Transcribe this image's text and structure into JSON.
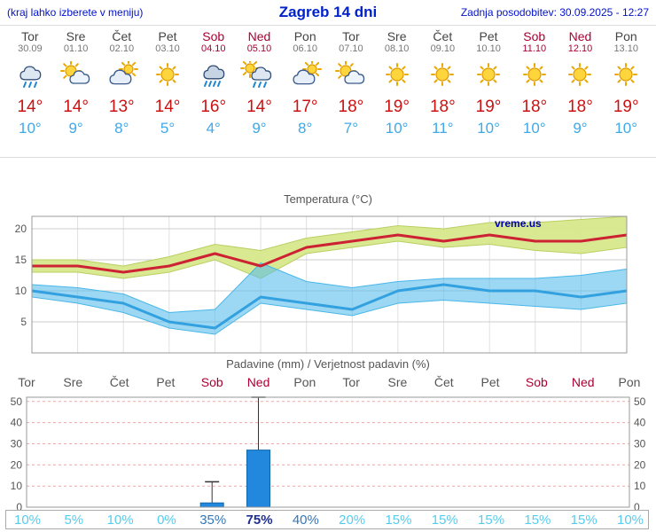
{
  "header": {
    "left_note": "(kraj lahko izberete v meniju)",
    "title": "Zagreb 14 dni",
    "updated": "Zadnja posodobitev: 30.09.2025 - 12:27"
  },
  "colors": {
    "header_blue": "#0022cc",
    "weekend_red": "#aa0033",
    "tmax_red": "#cc1111",
    "tmin_blue": "#3fa9e8",
    "tmax_line": "#cc2233",
    "tmin_line": "#33a1e0",
    "tmax_band": "rgba(214,232,140,0.95)",
    "tmin_band": "rgba(90,190,235,0.6)",
    "bar_blue": "#2288dd",
    "bar_edge": "#1166aa",
    "grid_gray": "#cccccc",
    "grid_pink": "#e9aaaa",
    "prob_low": "#55ccee",
    "prob_mid": "#3377bb",
    "prob_high": "#1d2f8f"
  },
  "days": [
    {
      "name": "Tor",
      "date": "30.09",
      "weekend": false,
      "icon": "cloud-rain",
      "tmax": "14°",
      "tmin": "10°"
    },
    {
      "name": "Sre",
      "date": "01.10",
      "weekend": false,
      "icon": "sun-cloud",
      "tmax": "14°",
      "tmin": "9°"
    },
    {
      "name": "Čet",
      "date": "02.10",
      "weekend": false,
      "icon": "cloud-sun",
      "tmax": "13°",
      "tmin": "8°"
    },
    {
      "name": "Pet",
      "date": "03.10",
      "weekend": false,
      "icon": "sun",
      "tmax": "14°",
      "tmin": "5°"
    },
    {
      "name": "Sob",
      "date": "04.10",
      "weekend": true,
      "icon": "rain",
      "tmax": "16°",
      "tmin": "4°"
    },
    {
      "name": "Ned",
      "date": "05.10",
      "weekend": true,
      "icon": "sun-rain",
      "tmax": "14°",
      "tmin": "9°"
    },
    {
      "name": "Pon",
      "date": "06.10",
      "weekend": false,
      "icon": "cloud-sun",
      "tmax": "17°",
      "tmin": "8°"
    },
    {
      "name": "Tor",
      "date": "07.10",
      "weekend": false,
      "icon": "sun-cloud",
      "tmax": "18°",
      "tmin": "7°"
    },
    {
      "name": "Sre",
      "date": "08.10",
      "weekend": false,
      "icon": "sun",
      "tmax": "19°",
      "tmin": "10°"
    },
    {
      "name": "Čet",
      "date": "09.10",
      "weekend": false,
      "icon": "sun",
      "tmax": "18°",
      "tmin": "11°"
    },
    {
      "name": "Pet",
      "date": "10.10",
      "weekend": false,
      "icon": "sun",
      "tmax": "19°",
      "tmin": "10°"
    },
    {
      "name": "Sob",
      "date": "11.10",
      "weekend": true,
      "icon": "sun",
      "tmax": "18°",
      "tmin": "10°"
    },
    {
      "name": "Ned",
      "date": "12.10",
      "weekend": true,
      "icon": "sun",
      "tmax": "18°",
      "tmin": "9°"
    },
    {
      "name": "Pon",
      "date": "13.10",
      "weekend": false,
      "icon": "sun",
      "tmax": "19°",
      "tmin": "10°"
    }
  ],
  "chart_data": [
    {
      "type": "line",
      "title": "Temperatura (°C)",
      "watermark": "vreme.us",
      "x_labels": [
        "Tor",
        "Sre",
        "Čet",
        "Pet",
        "Sob",
        "Ned",
        "Pon",
        "Tor",
        "Sre",
        "Čet",
        "Pet",
        "Sob",
        "Ned",
        "Pon"
      ],
      "ylim": [
        0,
        22
      ],
      "yticks": [
        5,
        10,
        15,
        20
      ],
      "grid": true,
      "series": [
        {
          "name": "max-temperature",
          "values": [
            14,
            14,
            13,
            14,
            16,
            14,
            17,
            18,
            19,
            18,
            19,
            18,
            18,
            19
          ]
        },
        {
          "name": "min-temperature",
          "values": [
            10,
            9,
            8,
            5,
            4,
            9,
            8,
            7,
            10,
            11,
            10,
            10,
            9,
            10
          ]
        }
      ],
      "bands": [
        {
          "name": "max-temperature-range",
          "upper": [
            15,
            15,
            14,
            15.5,
            17.5,
            16.5,
            18.5,
            19.5,
            20.5,
            20,
            21,
            21,
            21.5,
            22
          ],
          "lower": [
            13,
            13,
            12,
            13,
            15,
            12,
            16,
            17,
            18,
            17,
            17.5,
            16.5,
            16,
            17
          ]
        },
        {
          "name": "min-temperature-range",
          "upper": [
            11,
            10.5,
            9.5,
            6.5,
            7,
            14.5,
            11.5,
            10.5,
            11.5,
            12,
            12,
            12,
            12.5,
            13.5
          ],
          "lower": [
            9,
            8,
            6.5,
            4,
            3,
            8,
            7,
            6,
            8,
            8.5,
            8,
            7.5,
            7,
            8
          ]
        }
      ]
    },
    {
      "type": "bar",
      "title": "Padavine (mm) / Verjetnost padavin (%)",
      "categories": [
        "Tor",
        "Sre",
        "Čet",
        "Pet",
        "Sob",
        "Ned",
        "Pon",
        "Tor",
        "Sre",
        "Čet",
        "Pet",
        "Sob",
        "Ned",
        "Pon"
      ],
      "values": [
        0,
        0,
        0,
        0,
        2,
        27,
        0,
        0,
        0,
        0,
        0,
        0,
        0,
        0
      ],
      "whisker_max": [
        0,
        0,
        0,
        0,
        12,
        52,
        0,
        0,
        0,
        0,
        0,
        0,
        0,
        0
      ],
      "ylim": [
        0,
        52
      ],
      "yticks": [
        0,
        10,
        20,
        30,
        40,
        50
      ],
      "probabilities": [
        10,
        5,
        10,
        0,
        35,
        75,
        40,
        20,
        15,
        15,
        15,
        15,
        15,
        10
      ]
    }
  ]
}
